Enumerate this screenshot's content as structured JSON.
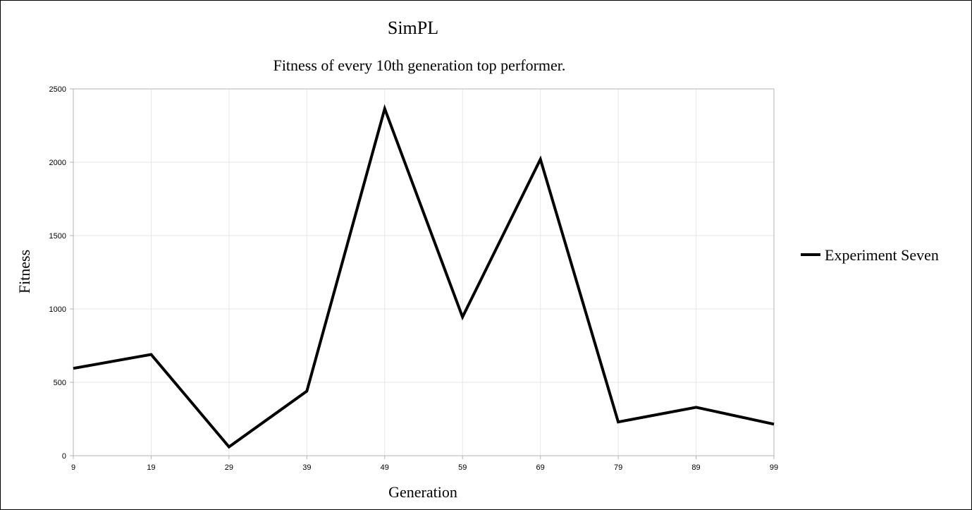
{
  "chart_data": {
    "type": "line",
    "title": "SimPL",
    "subtitle": "Fitness of every 10th generation top performer.",
    "xlabel": "Generation",
    "ylabel": "Fitness",
    "categories": [
      "9",
      "19",
      "29",
      "39",
      "49",
      "59",
      "69",
      "79",
      "89",
      "99"
    ],
    "series": [
      {
        "name": "Experiment Seven",
        "values": [
          595,
          690,
          60,
          440,
          2365,
          945,
          2020,
          230,
          330,
          215
        ],
        "color": "#000000"
      }
    ],
    "ylim": [
      0,
      2500
    ],
    "yticks": [
      "0",
      "500",
      "1000",
      "1500",
      "2000",
      "2500"
    ],
    "grid": true,
    "legend_position": "right"
  }
}
